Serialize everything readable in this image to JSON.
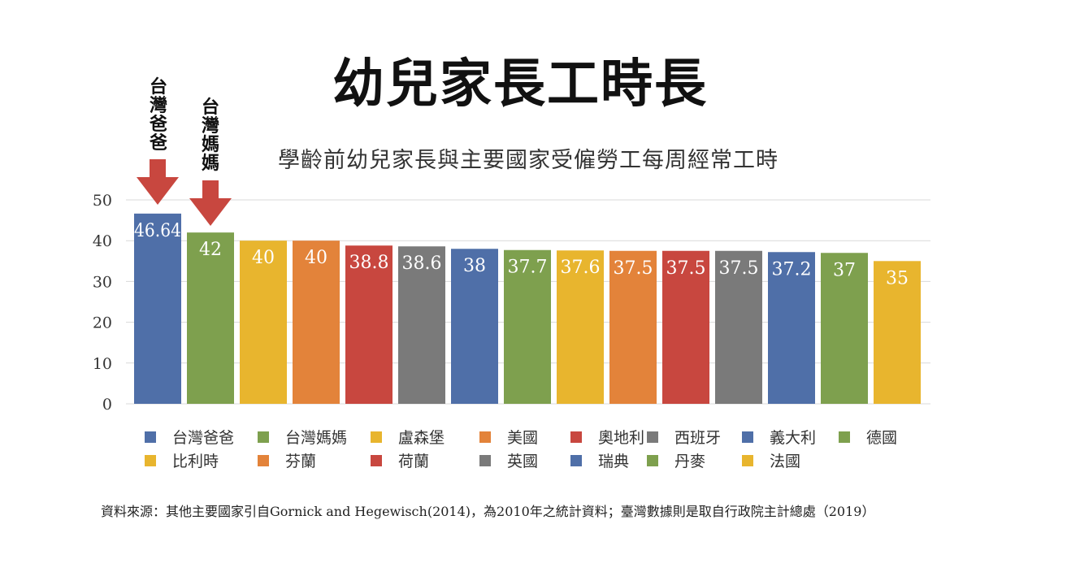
{
  "main_title": "幼兒家長工時長",
  "callouts": [
    "台灣爸爸",
    "台灣媽媽"
  ],
  "source_note": "資料來源：其他主要國家引自Gornick and Hegewisch(2014)，為2010年之統計資料；臺灣數據則是取自行政院主計總處（2019）",
  "colors": {
    "blue": "#4f6fa8",
    "green": "#7ea04e",
    "yellow": "#e8b52e",
    "orange": "#e3833a",
    "red": "#c8473f",
    "gray": "#7a7a7a",
    "arrow": "#c8473f",
    "grid": "#d9d9d9"
  },
  "chart_data": {
    "type": "bar",
    "title": "學齡前幼兒家長與主要國家受僱勞工每周經常工時",
    "xlabel": "",
    "ylabel": "",
    "ylim": [
      0,
      50
    ],
    "yticks": [
      0,
      10,
      20,
      30,
      40,
      50
    ],
    "grid": true,
    "legend_position": "bottom",
    "categories": [
      "台灣爸爸",
      "台灣媽媽",
      "盧森堡",
      "美國",
      "奧地利",
      "西班牙",
      "義大利",
      "德國",
      "比利時",
      "芬蘭",
      "荷蘭",
      "英國",
      "瑞典",
      "丹麥",
      "法國"
    ],
    "values": [
      46.64,
      42,
      40,
      40,
      38.8,
      38.6,
      38,
      37.7,
      37.6,
      37.5,
      37.5,
      37.5,
      37.2,
      37,
      35
    ],
    "value_labels": [
      "46.64",
      "42",
      "40",
      "40",
      "38.8",
      "38.6",
      "38",
      "37.7",
      "37.6",
      "37.5",
      "37.5",
      "37.5",
      "37.2",
      "37",
      "35"
    ],
    "bar_colors": [
      "blue",
      "green",
      "yellow",
      "orange",
      "red",
      "gray",
      "blue",
      "green",
      "yellow",
      "orange",
      "red",
      "gray",
      "blue",
      "green",
      "yellow"
    ]
  }
}
